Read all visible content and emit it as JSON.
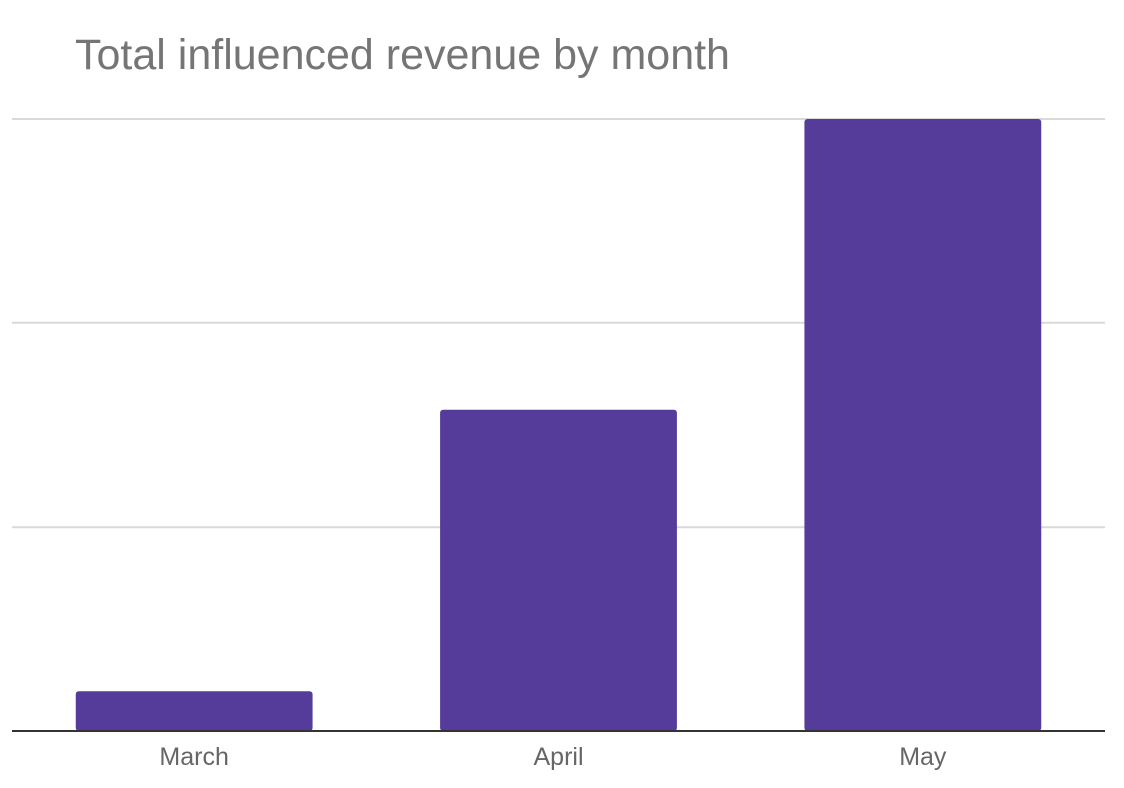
{
  "chart_data": {
    "type": "bar",
    "title": "Total influenced revenue by month",
    "xlabel": "",
    "ylabel": "",
    "categories": [
      "March",
      "April",
      "May"
    ],
    "values": [
      6.5,
      52.5,
      100
    ],
    "ylim": [
      0,
      100
    ],
    "gridlines": [
      0,
      33.3,
      66.7,
      100
    ],
    "grid": true,
    "legend": "none",
    "colors": {
      "bar": "#553c9a",
      "grid": "#d9d9d9",
      "baseline": "#333333",
      "title": "#757575",
      "tick_label": "#666666"
    }
  }
}
